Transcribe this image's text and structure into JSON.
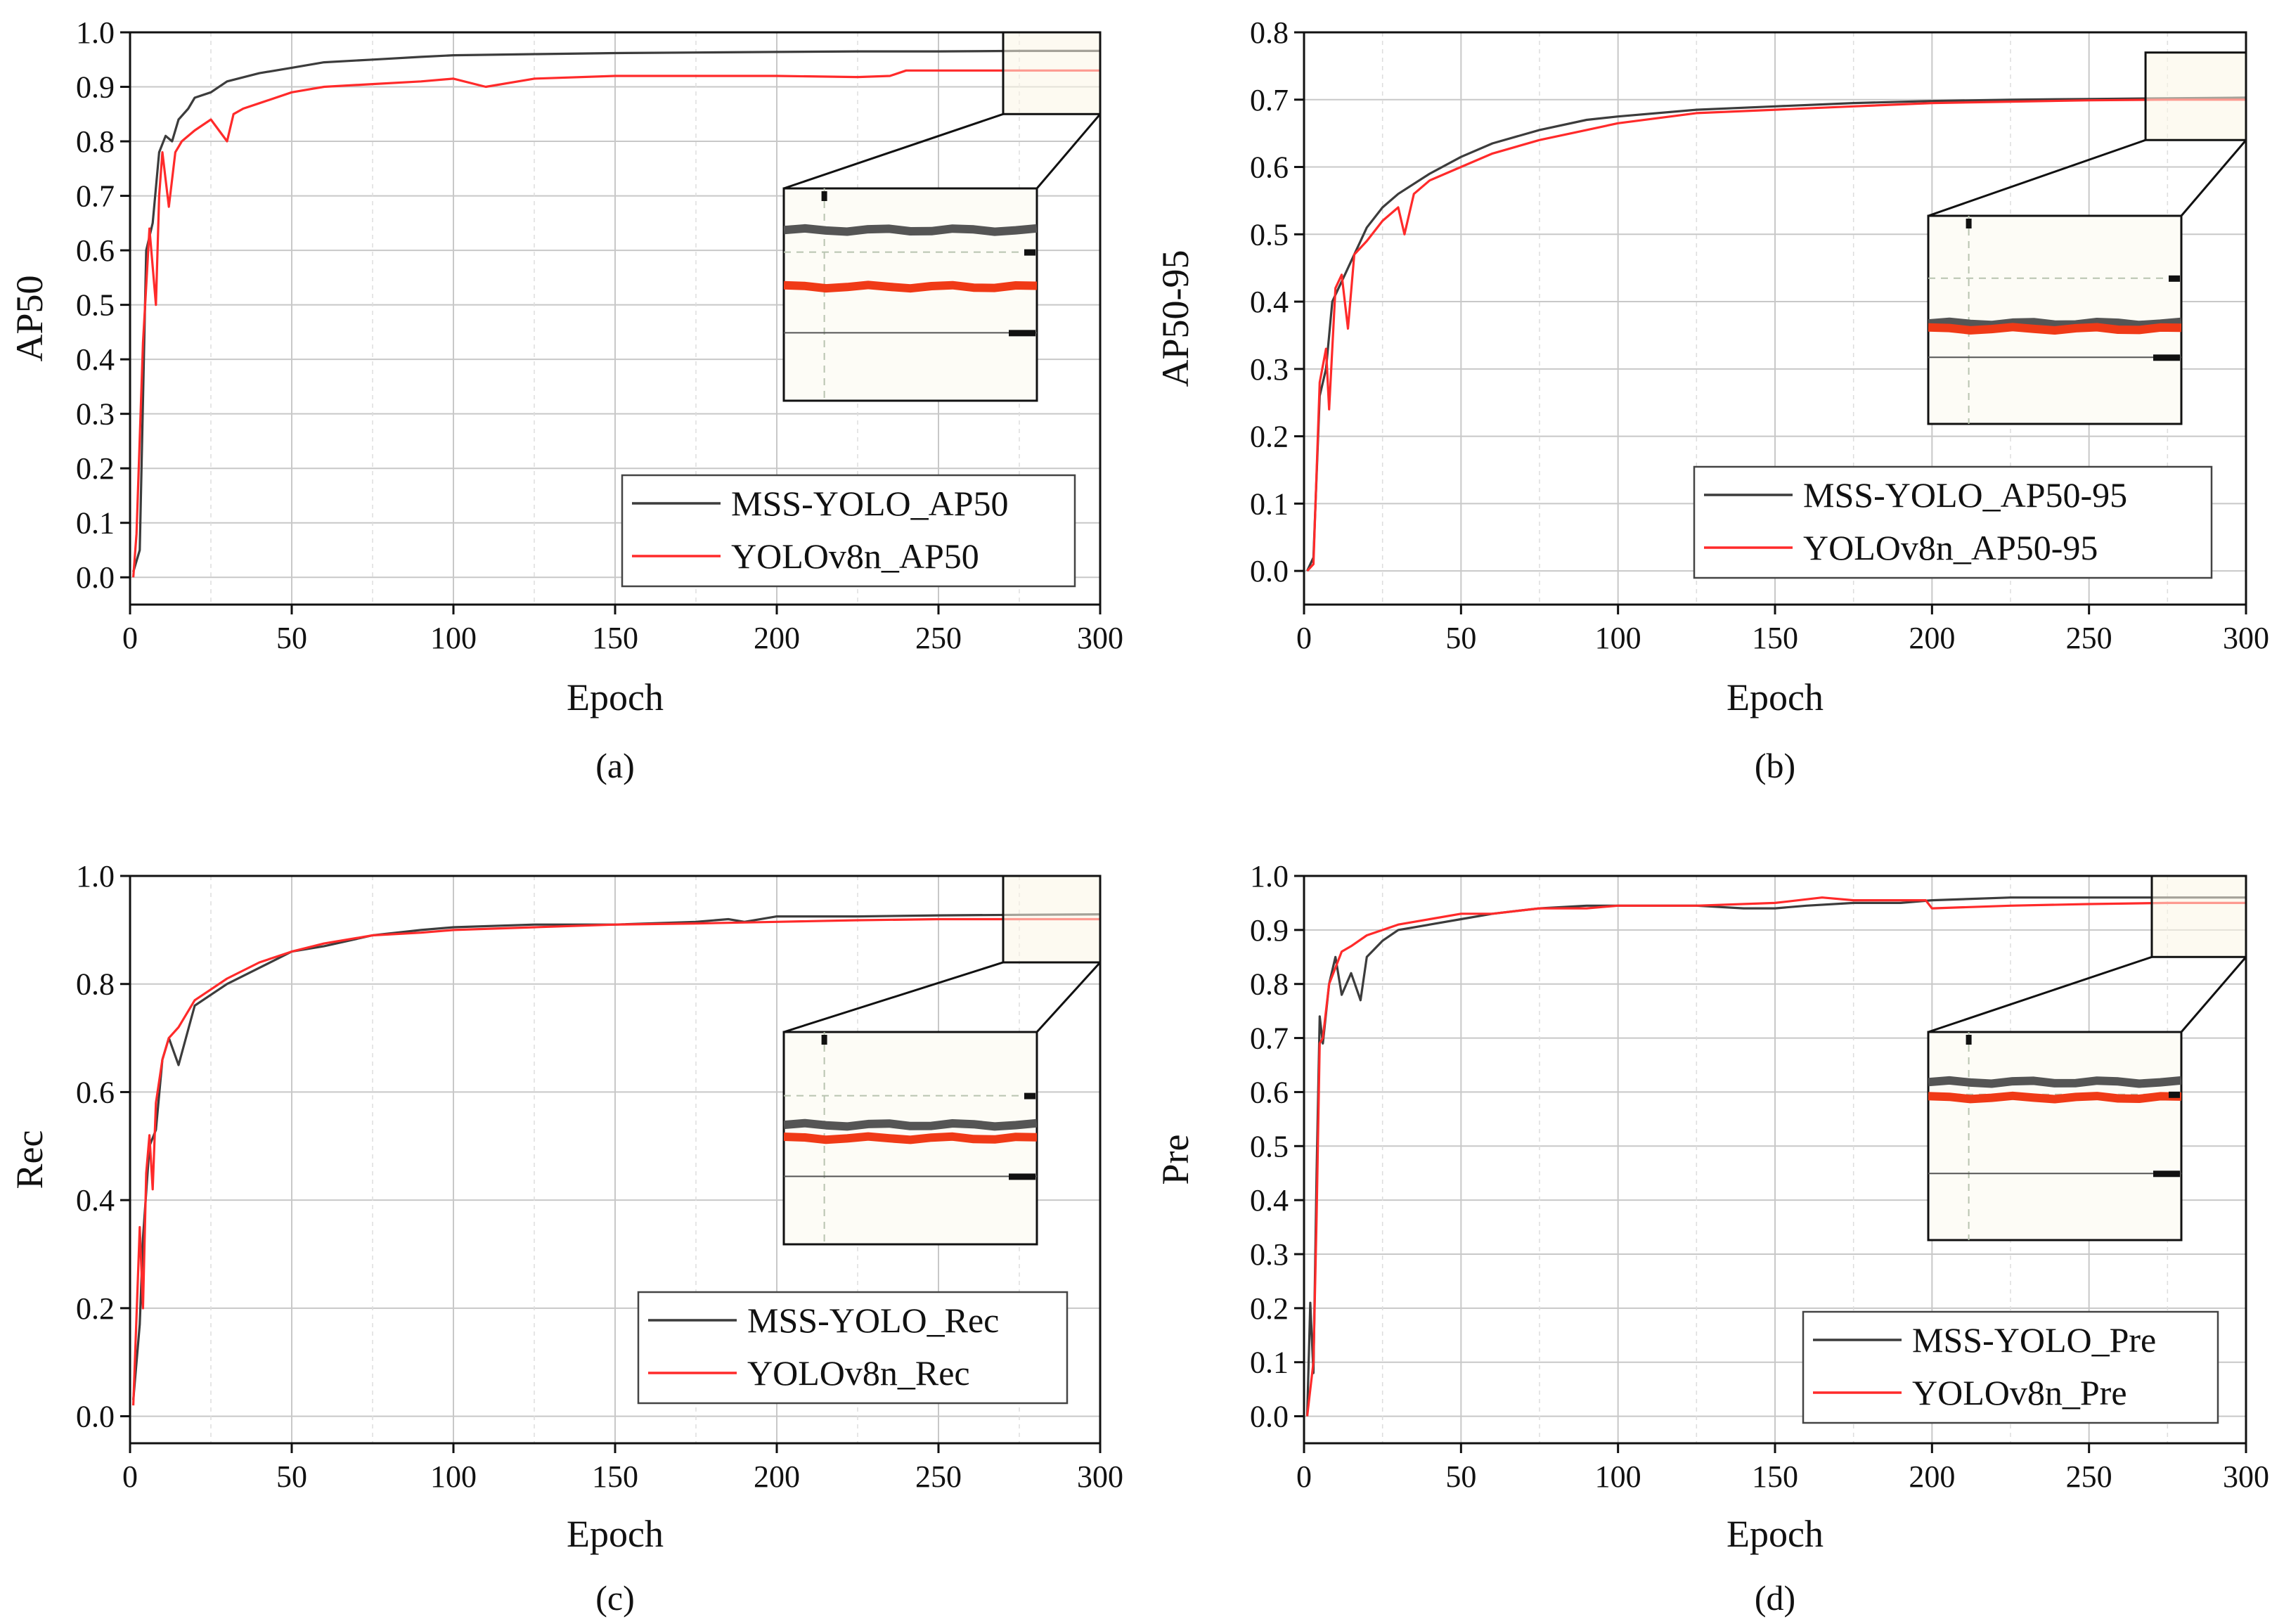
{
  "colors": {
    "mss": "#3c3c3c",
    "yolo": "#ff2a2a",
    "inset_mss": "#555555",
    "inset_yolo": "#f03a17",
    "zoom_fill": "#fbf5e6",
    "inset_bg": "#fdfcf6",
    "grid": "#c8c8c8"
  },
  "chart_data": [
    {
      "type": "line",
      "caption": "(a)",
      "xlabel": "Epoch",
      "ylabel": "AP50",
      "xlim": [
        0,
        300
      ],
      "ylim": [
        -0.05,
        1.0
      ],
      "xticks": [
        0,
        50,
        100,
        150,
        200,
        250,
        300
      ],
      "yticks": [
        0.0,
        0.1,
        0.2,
        0.3,
        0.4,
        0.5,
        0.6,
        0.7,
        0.8,
        0.9,
        1.0
      ],
      "ytick_decimals": 1,
      "grid": true,
      "legend_position": "bottom-right",
      "zoom_region": {
        "x": [
          270,
          300
        ],
        "y": [
          0.85,
          1.0
        ]
      },
      "series": [
        {
          "name": "MSS-YOLO_AP50",
          "color_key": "mss",
          "x": [
            1,
            3,
            5,
            7,
            9,
            11,
            13,
            15,
            18,
            20,
            25,
            30,
            40,
            50,
            60,
            75,
            90,
            100,
            125,
            150,
            175,
            200,
            225,
            250,
            275,
            300
          ],
          "y": [
            0.01,
            0.05,
            0.6,
            0.65,
            0.78,
            0.81,
            0.8,
            0.84,
            0.86,
            0.88,
            0.89,
            0.91,
            0.925,
            0.935,
            0.945,
            0.95,
            0.955,
            0.958,
            0.96,
            0.962,
            0.963,
            0.964,
            0.965,
            0.965,
            0.966,
            0.966
          ]
        },
        {
          "name": "YOLOv8n_AP50",
          "color_key": "yolo",
          "x": [
            1,
            2,
            4,
            6,
            8,
            9,
            10,
            12,
            14,
            16,
            20,
            25,
            30,
            32,
            35,
            40,
            50,
            60,
            75,
            90,
            100,
            110,
            125,
            150,
            175,
            200,
            225,
            235,
            240,
            250,
            275,
            300
          ],
          "y": [
            0.0,
            0.08,
            0.43,
            0.64,
            0.5,
            0.7,
            0.78,
            0.68,
            0.78,
            0.8,
            0.82,
            0.84,
            0.8,
            0.85,
            0.86,
            0.87,
            0.89,
            0.9,
            0.905,
            0.91,
            0.915,
            0.9,
            0.915,
            0.92,
            0.92,
            0.92,
            0.918,
            0.92,
            0.93,
            0.93,
            0.93,
            0.93
          ]
        }
      ]
    },
    {
      "type": "line",
      "caption": "(b)",
      "xlabel": "Epoch",
      "ylabel": "AP50-95",
      "xlim": [
        0,
        300
      ],
      "ylim": [
        -0.05,
        0.8
      ],
      "xticks": [
        0,
        50,
        100,
        150,
        200,
        250,
        300
      ],
      "yticks": [
        0.0,
        0.1,
        0.2,
        0.3,
        0.4,
        0.5,
        0.6,
        0.7,
        0.8
      ],
      "ytick_decimals": 1,
      "grid": true,
      "legend_position": "bottom-right",
      "zoom_region": {
        "x": [
          268,
          300
        ],
        "y": [
          0.64,
          0.77
        ]
      },
      "series": [
        {
          "name": "MSS-YOLO_AP50-95",
          "color_key": "mss",
          "x": [
            1,
            3,
            5,
            7,
            9,
            11,
            13,
            15,
            18,
            20,
            25,
            30,
            40,
            50,
            60,
            75,
            90,
            100,
            125,
            150,
            175,
            200,
            225,
            250,
            275,
            300
          ],
          "y": [
            0.0,
            0.02,
            0.26,
            0.3,
            0.4,
            0.42,
            0.44,
            0.46,
            0.49,
            0.51,
            0.54,
            0.56,
            0.59,
            0.615,
            0.635,
            0.655,
            0.67,
            0.675,
            0.685,
            0.69,
            0.695,
            0.698,
            0.7,
            0.701,
            0.702,
            0.703
          ]
        },
        {
          "name": "YOLOv8n_AP50-95",
          "color_key": "yolo",
          "x": [
            1,
            3,
            5,
            7,
            8,
            10,
            12,
            14,
            16,
            20,
            25,
            30,
            32,
            35,
            40,
            50,
            60,
            75,
            90,
            100,
            125,
            150,
            175,
            200,
            225,
            250,
            275,
            300
          ],
          "y": [
            0.0,
            0.01,
            0.28,
            0.33,
            0.24,
            0.42,
            0.44,
            0.36,
            0.47,
            0.49,
            0.52,
            0.54,
            0.5,
            0.56,
            0.58,
            0.6,
            0.62,
            0.64,
            0.655,
            0.665,
            0.68,
            0.685,
            0.69,
            0.695,
            0.697,
            0.699,
            0.7,
            0.7
          ]
        }
      ]
    },
    {
      "type": "line",
      "caption": "(c)",
      "xlabel": "Epoch",
      "ylabel": "Rec",
      "xlim": [
        0,
        300
      ],
      "ylim": [
        -0.05,
        1.0
      ],
      "xticks": [
        0,
        50,
        100,
        150,
        200,
        250,
        300
      ],
      "yticks": [
        0.0,
        0.2,
        0.4,
        0.6,
        0.8,
        1.0
      ],
      "ytick_decimals": 1,
      "grid": true,
      "legend_position": "bottom-right",
      "zoom_region": {
        "x": [
          270,
          300
        ],
        "y": [
          0.84,
          1.0
        ]
      },
      "series": [
        {
          "name": "MSS-YOLO_Rec",
          "color_key": "mss",
          "x": [
            1,
            3,
            4,
            6,
            8,
            10,
            12,
            15,
            20,
            25,
            30,
            40,
            50,
            60,
            75,
            90,
            100,
            125,
            150,
            175,
            185,
            190,
            200,
            225,
            250,
            275,
            300
          ],
          "y": [
            0.03,
            0.17,
            0.33,
            0.5,
            0.53,
            0.66,
            0.7,
            0.65,
            0.76,
            0.78,
            0.8,
            0.83,
            0.86,
            0.87,
            0.89,
            0.9,
            0.905,
            0.91,
            0.91,
            0.915,
            0.92,
            0.915,
            0.925,
            0.925,
            0.927,
            0.928,
            0.929
          ]
        },
        {
          "name": "YOLOv8n_Rec",
          "color_key": "yolo",
          "x": [
            1,
            3,
            4,
            5,
            6,
            7,
            8,
            10,
            12,
            15,
            20,
            25,
            30,
            40,
            50,
            60,
            75,
            90,
            100,
            125,
            150,
            175,
            200,
            225,
            250,
            275,
            300
          ],
          "y": [
            0.02,
            0.35,
            0.2,
            0.45,
            0.52,
            0.42,
            0.58,
            0.66,
            0.7,
            0.72,
            0.77,
            0.79,
            0.81,
            0.84,
            0.86,
            0.875,
            0.89,
            0.895,
            0.9,
            0.905,
            0.91,
            0.912,
            0.915,
            0.918,
            0.92,
            0.92,
            0.92
          ]
        }
      ]
    },
    {
      "type": "line",
      "caption": "(d)",
      "xlabel": "Epoch",
      "ylabel": "Pre",
      "xlim": [
        0,
        300
      ],
      "ylim": [
        -0.05,
        1.0
      ],
      "xticks": [
        0,
        50,
        100,
        150,
        200,
        250,
        300
      ],
      "yticks": [
        0.0,
        0.1,
        0.2,
        0.3,
        0.4,
        0.5,
        0.6,
        0.7,
        0.8,
        0.9,
        1.0
      ],
      "ytick_decimals": 1,
      "grid": true,
      "legend_position": "bottom-right",
      "zoom_region": {
        "x": [
          270,
          300
        ],
        "y": [
          0.85,
          1.0
        ]
      },
      "series": [
        {
          "name": "MSS-YOLO_Pre",
          "color_key": "mss",
          "x": [
            1,
            2,
            3,
            4,
            5,
            6,
            8,
            10,
            12,
            15,
            18,
            20,
            25,
            30,
            40,
            50,
            60,
            75,
            90,
            100,
            125,
            140,
            150,
            160,
            175,
            190,
            200,
            225,
            250,
            275,
            300
          ],
          "y": [
            0.0,
            0.21,
            0.08,
            0.45,
            0.74,
            0.69,
            0.8,
            0.85,
            0.78,
            0.82,
            0.77,
            0.85,
            0.88,
            0.9,
            0.91,
            0.92,
            0.93,
            0.94,
            0.945,
            0.945,
            0.945,
            0.94,
            0.94,
            0.945,
            0.95,
            0.95,
            0.955,
            0.96,
            0.96,
            0.96,
            0.96
          ]
        },
        {
          "name": "YOLOv8n_Pre",
          "color_key": "yolo",
          "x": [
            1,
            3,
            4,
            5,
            6,
            8,
            10,
            12,
            15,
            20,
            25,
            30,
            40,
            50,
            60,
            75,
            90,
            100,
            125,
            150,
            165,
            175,
            190,
            198,
            200,
            225,
            250,
            275,
            300
          ],
          "y": [
            0.0,
            0.1,
            0.37,
            0.69,
            0.7,
            0.8,
            0.83,
            0.86,
            0.87,
            0.89,
            0.9,
            0.91,
            0.92,
            0.93,
            0.93,
            0.94,
            0.94,
            0.945,
            0.945,
            0.95,
            0.96,
            0.955,
            0.955,
            0.955,
            0.94,
            0.945,
            0.948,
            0.95,
            0.95
          ]
        }
      ]
    }
  ]
}
